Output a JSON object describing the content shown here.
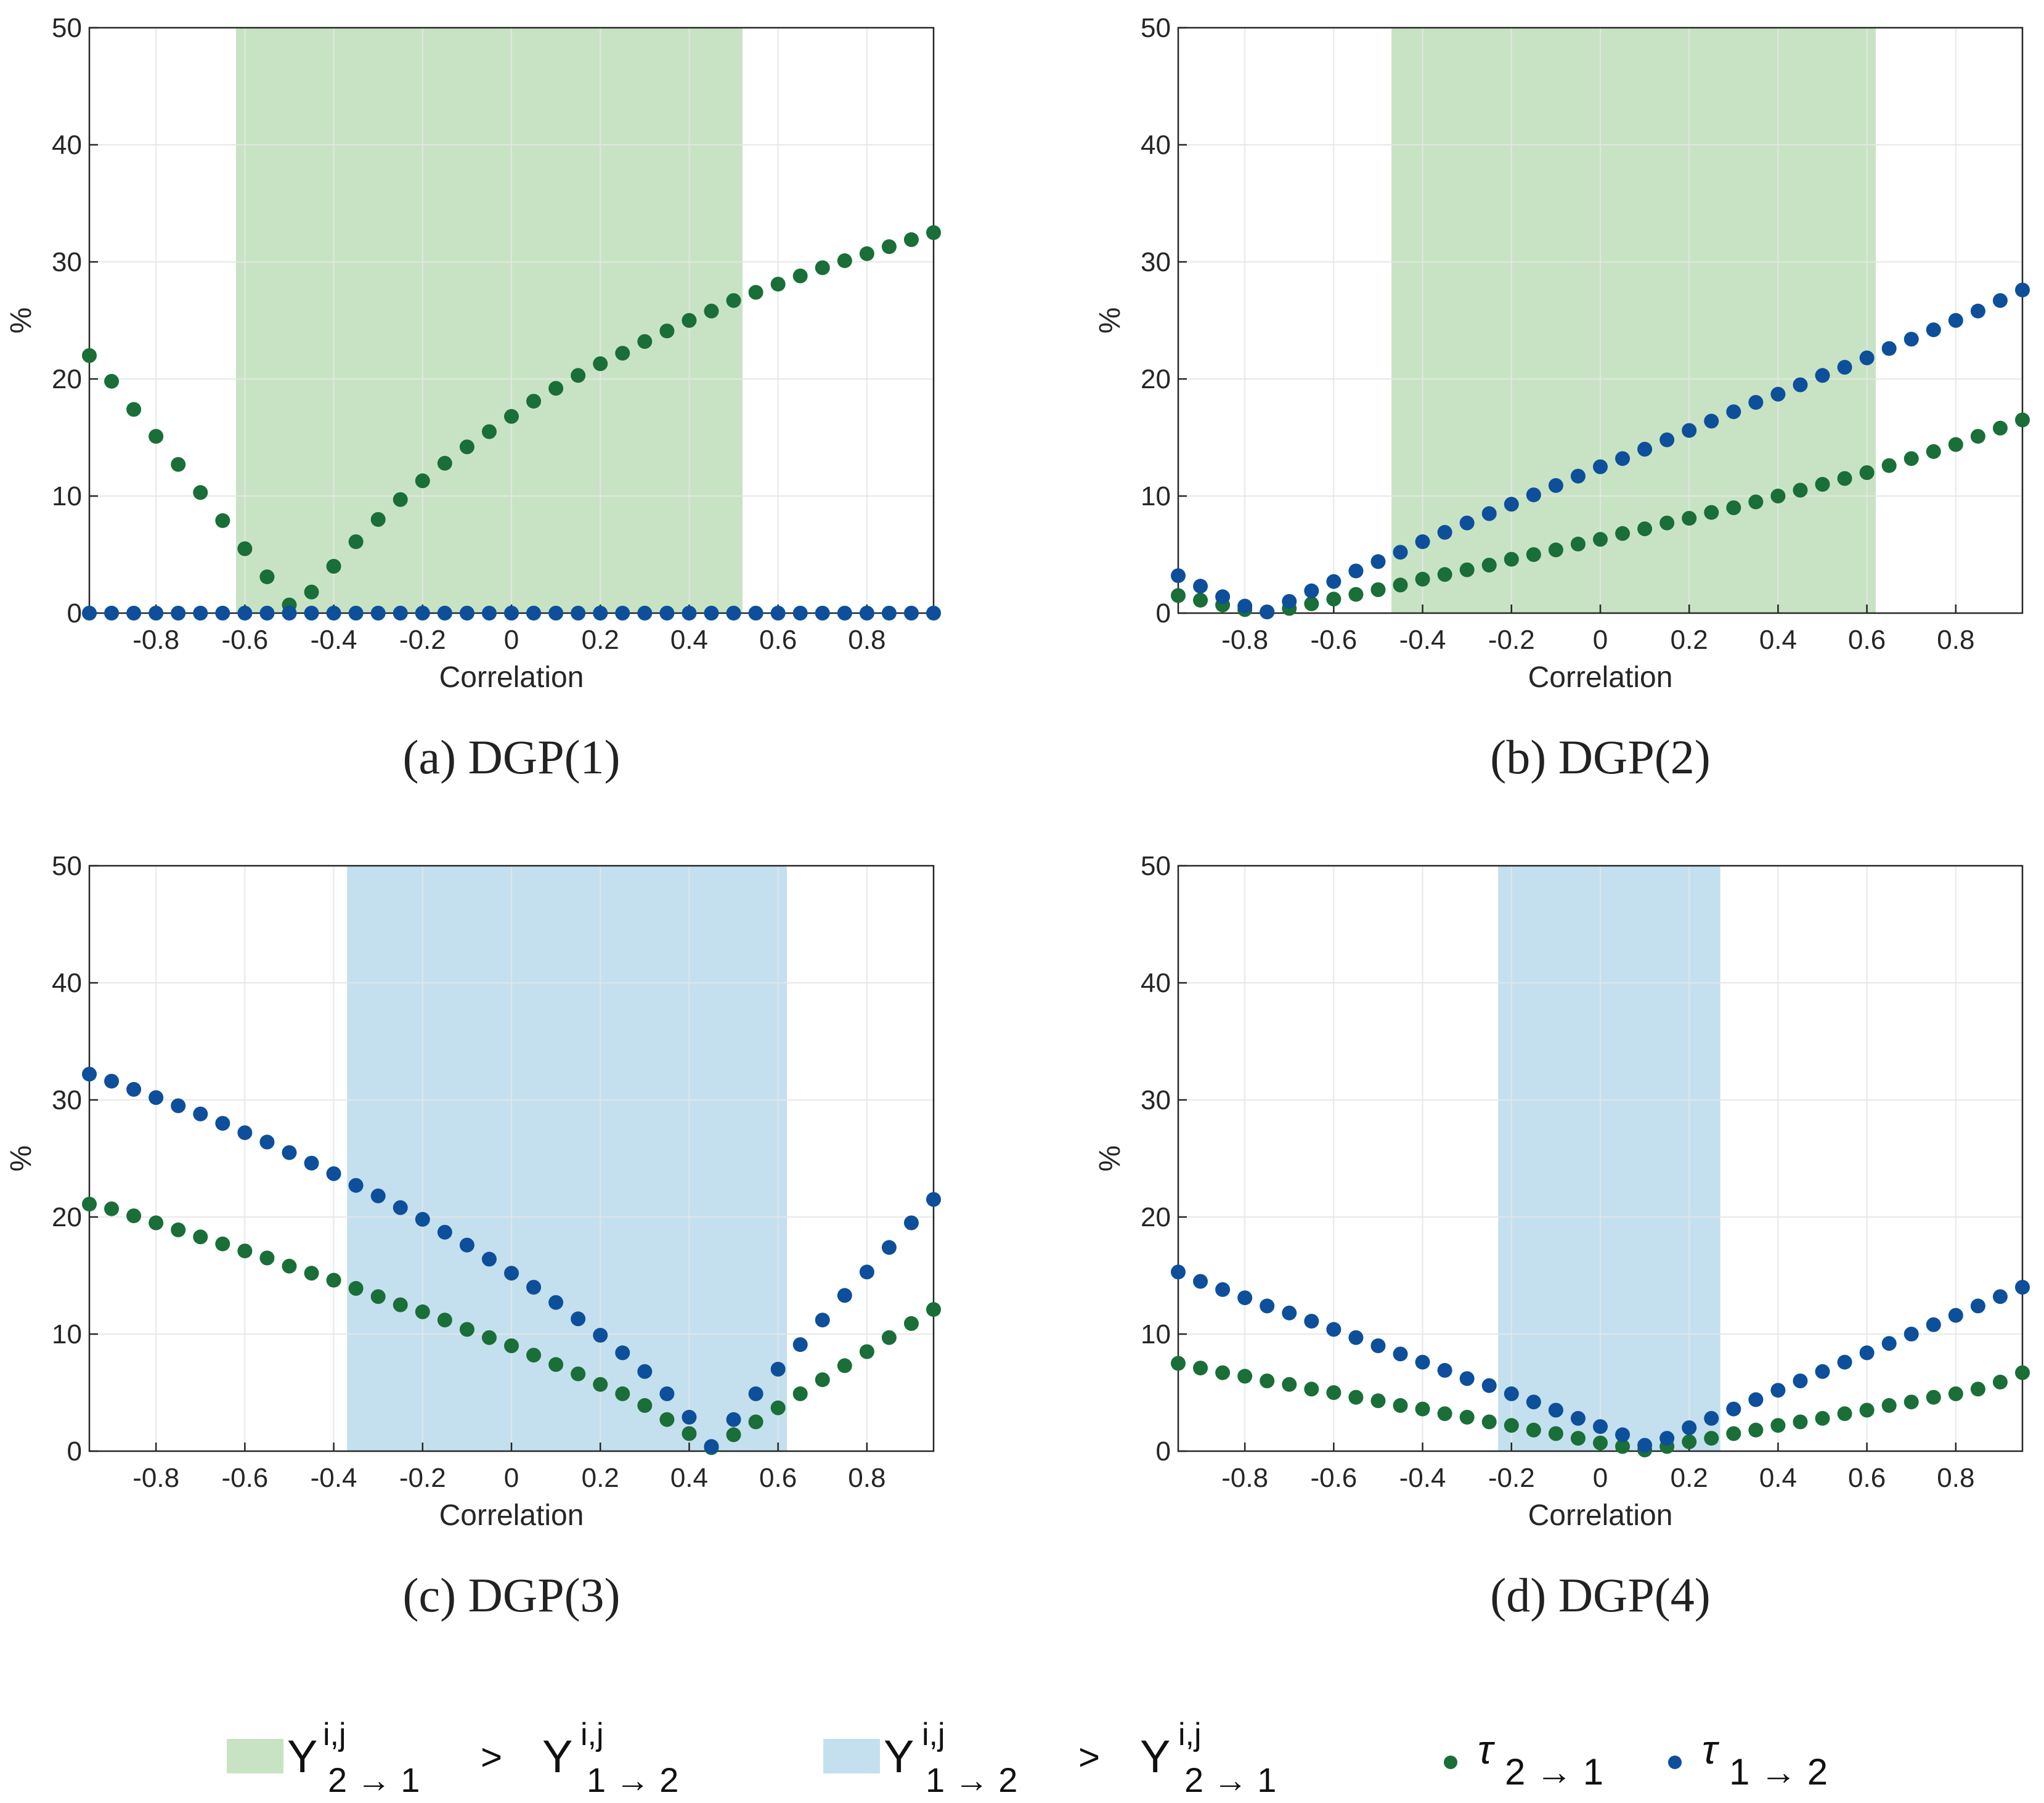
{
  "colors": {
    "green_dot": "#1a6e38",
    "blue_dot": "#0d4f9a",
    "green_band": "#c8e3c4",
    "blue_band": "#c4e0ee",
    "grid": "#e6e6e6",
    "axis": "#262626"
  },
  "chart_data": [
    {
      "type": "scatter",
      "caption": "(a) DGP(1)",
      "xlabel": "Correlation",
      "ylabel": "%",
      "xlim": [
        -0.95,
        0.95
      ],
      "ylim": [
        0,
        50
      ],
      "xticks": [
        -0.8,
        -0.6,
        -0.4,
        -0.2,
        0,
        0.2,
        0.4,
        0.6,
        0.8
      ],
      "xtick_labels": [
        "-0.8",
        "-0.6",
        "-0.4",
        "-0.2",
        "0",
        "0.2",
        "0.4",
        "0.6",
        "0.8"
      ],
      "yticks": [
        0,
        10,
        20,
        30,
        40,
        50
      ],
      "ytick_labels": [
        "0",
        "10",
        "20",
        "30",
        "40",
        "50"
      ],
      "grid": true,
      "band": {
        "from": -0.62,
        "to": 0.52,
        "kind": "green"
      },
      "x": [
        -0.95,
        -0.9,
        -0.85,
        -0.8,
        -0.75,
        -0.7,
        -0.65,
        -0.6,
        -0.55,
        -0.5,
        -0.45,
        -0.4,
        -0.35,
        -0.3,
        -0.25,
        -0.2,
        -0.15,
        -0.1,
        -0.05,
        0,
        0.05,
        0.1,
        0.15,
        0.2,
        0.25,
        0.3,
        0.35,
        0.4,
        0.45,
        0.5,
        0.55,
        0.6,
        0.65,
        0.7,
        0.75,
        0.8,
        0.85,
        0.9,
        0.95
      ],
      "series": [
        {
          "name": "tau_2_1",
          "color": "green",
          "values": [
            22.0,
            19.8,
            17.4,
            15.1,
            12.7,
            10.3,
            7.9,
            5.5,
            3.1,
            0.7,
            1.8,
            4.0,
            6.1,
            8.0,
            9.7,
            11.3,
            12.8,
            14.2,
            15.5,
            16.8,
            18.1,
            19.2,
            20.3,
            21.3,
            22.2,
            23.2,
            24.1,
            25.0,
            25.8,
            26.7,
            27.4,
            28.1,
            28.8,
            29.5,
            30.1,
            30.7,
            31.3,
            31.9,
            32.5
          ]
        },
        {
          "name": "tau_1_2",
          "color": "blue",
          "values": [
            0,
            0,
            0,
            0,
            0,
            0,
            0,
            0,
            0,
            0,
            0,
            0,
            0,
            0,
            0,
            0,
            0,
            0,
            0,
            0,
            0,
            0,
            0,
            0,
            0,
            0,
            0,
            0,
            0,
            0,
            0,
            0,
            0,
            0,
            0,
            0,
            0,
            0,
            0
          ]
        }
      ]
    },
    {
      "type": "scatter",
      "caption": "(b) DGP(2)",
      "xlabel": "Correlation",
      "ylabel": "%",
      "xlim": [
        -0.95,
        0.95
      ],
      "ylim": [
        0,
        50
      ],
      "xticks": [
        -0.8,
        -0.6,
        -0.4,
        -0.2,
        0,
        0.2,
        0.4,
        0.6,
        0.8
      ],
      "xtick_labels": [
        "-0.8",
        "-0.6",
        "-0.4",
        "-0.2",
        "0",
        "0.2",
        "0.4",
        "0.6",
        "0.8"
      ],
      "yticks": [
        0,
        10,
        20,
        30,
        40,
        50
      ],
      "ytick_labels": [
        "0",
        "10",
        "20",
        "30",
        "40",
        "50"
      ],
      "grid": true,
      "band": {
        "from": -0.47,
        "to": 0.62,
        "kind": "green"
      },
      "x": [
        -0.95,
        -0.9,
        -0.85,
        -0.8,
        -0.75,
        -0.7,
        -0.65,
        -0.6,
        -0.55,
        -0.5,
        -0.45,
        -0.4,
        -0.35,
        -0.3,
        -0.25,
        -0.2,
        -0.15,
        -0.1,
        -0.05,
        0,
        0.05,
        0.1,
        0.15,
        0.2,
        0.25,
        0.3,
        0.35,
        0.4,
        0.45,
        0.5,
        0.55,
        0.6,
        0.65,
        0.7,
        0.75,
        0.8,
        0.85,
        0.9,
        0.95
      ],
      "series": [
        {
          "name": "tau_2_1",
          "color": "green",
          "values": [
            1.5,
            1.1,
            0.7,
            0.3,
            0.1,
            0.4,
            0.8,
            1.2,
            1.6,
            2.0,
            2.4,
            2.9,
            3.3,
            3.7,
            4.1,
            4.6,
            5.0,
            5.4,
            5.9,
            6.3,
            6.8,
            7.2,
            7.7,
            8.1,
            8.6,
            9.0,
            9.5,
            10.0,
            10.5,
            11.0,
            11.5,
            12.0,
            12.6,
            13.2,
            13.8,
            14.4,
            15.1,
            15.8,
            16.5
          ]
        },
        {
          "name": "tau_1_2",
          "color": "blue",
          "values": [
            3.2,
            2.3,
            1.4,
            0.6,
            0.1,
            1.0,
            1.9,
            2.7,
            3.6,
            4.4,
            5.2,
            6.1,
            6.9,
            7.7,
            8.5,
            9.3,
            10.1,
            10.9,
            11.7,
            12.5,
            13.2,
            14.0,
            14.8,
            15.6,
            16.4,
            17.2,
            18.0,
            18.7,
            19.5,
            20.3,
            21.0,
            21.8,
            22.6,
            23.4,
            24.2,
            25.0,
            25.8,
            26.7,
            27.6
          ]
        }
      ]
    },
    {
      "type": "scatter",
      "caption": "(c) DGP(3)",
      "xlabel": "Correlation",
      "ylabel": "%",
      "xlim": [
        -0.95,
        0.95
      ],
      "ylim": [
        0,
        50
      ],
      "xticks": [
        -0.8,
        -0.6,
        -0.4,
        -0.2,
        0,
        0.2,
        0.4,
        0.6,
        0.8
      ],
      "xtick_labels": [
        "-0.8",
        "-0.6",
        "-0.4",
        "-0.2",
        "0",
        "0.2",
        "0.4",
        "0.6",
        "0.8"
      ],
      "yticks": [
        0,
        10,
        20,
        30,
        40,
        50
      ],
      "ytick_labels": [
        "0",
        "10",
        "20",
        "30",
        "40",
        "50"
      ],
      "grid": true,
      "band": {
        "from": -0.37,
        "to": 0.62,
        "kind": "blue"
      },
      "x": [
        -0.95,
        -0.9,
        -0.85,
        -0.8,
        -0.75,
        -0.7,
        -0.65,
        -0.6,
        -0.55,
        -0.5,
        -0.45,
        -0.4,
        -0.35,
        -0.3,
        -0.25,
        -0.2,
        -0.15,
        -0.1,
        -0.05,
        0,
        0.05,
        0.1,
        0.15,
        0.2,
        0.25,
        0.3,
        0.35,
        0.4,
        0.45,
        0.5,
        0.55,
        0.6,
        0.65,
        0.7,
        0.75,
        0.8,
        0.85,
        0.9,
        0.95
      ],
      "series": [
        {
          "name": "tau_2_1",
          "color": "green",
          "values": [
            21.1,
            20.7,
            20.1,
            19.5,
            18.9,
            18.3,
            17.7,
            17.1,
            16.5,
            15.8,
            15.2,
            14.6,
            13.9,
            13.2,
            12.5,
            11.9,
            11.2,
            10.4,
            9.7,
            9.0,
            8.2,
            7.4,
            6.6,
            5.7,
            4.9,
            3.9,
            2.7,
            1.5,
            0.3,
            1.4,
            2.5,
            3.7,
            4.9,
            6.1,
            7.3,
            8.5,
            9.7,
            10.9,
            12.1
          ]
        },
        {
          "name": "tau_1_2",
          "color": "blue",
          "values": [
            32.2,
            31.6,
            30.9,
            30.2,
            29.5,
            28.8,
            28.0,
            27.2,
            26.4,
            25.5,
            24.6,
            23.7,
            22.7,
            21.8,
            20.8,
            19.8,
            18.7,
            17.6,
            16.4,
            15.2,
            14.0,
            12.7,
            11.3,
            9.9,
            8.4,
            6.8,
            4.9,
            2.9,
            0.4,
            2.7,
            4.9,
            7.0,
            9.1,
            11.2,
            13.3,
            15.3,
            17.4,
            19.5,
            21.5
          ]
        }
      ]
    },
    {
      "type": "scatter",
      "caption": "(d) DGP(4)",
      "xlabel": "Correlation",
      "ylabel": "%",
      "xlim": [
        -0.95,
        0.95
      ],
      "ylim": [
        0,
        50
      ],
      "xticks": [
        -0.8,
        -0.6,
        -0.4,
        -0.2,
        0,
        0.2,
        0.4,
        0.6,
        0.8
      ],
      "xtick_labels": [
        "-0.8",
        "-0.6",
        "-0.4",
        "-0.2",
        "0",
        "0.2",
        "0.4",
        "0.6",
        "0.8"
      ],
      "yticks": [
        0,
        10,
        20,
        30,
        40,
        50
      ],
      "ytick_labels": [
        "0",
        "10",
        "20",
        "30",
        "40",
        "50"
      ],
      "grid": true,
      "band": {
        "from": -0.23,
        "to": 0.27,
        "kind": "blue"
      },
      "x": [
        -0.95,
        -0.9,
        -0.85,
        -0.8,
        -0.75,
        -0.7,
        -0.65,
        -0.6,
        -0.55,
        -0.5,
        -0.45,
        -0.4,
        -0.35,
        -0.3,
        -0.25,
        -0.2,
        -0.15,
        -0.1,
        -0.05,
        0,
        0.05,
        0.1,
        0.15,
        0.2,
        0.25,
        0.3,
        0.35,
        0.4,
        0.45,
        0.5,
        0.55,
        0.6,
        0.65,
        0.7,
        0.75,
        0.8,
        0.85,
        0.9,
        0.95
      ],
      "series": [
        {
          "name": "tau_2_1",
          "color": "green",
          "values": [
            7.5,
            7.1,
            6.7,
            6.4,
            6.0,
            5.7,
            5.3,
            5.0,
            4.6,
            4.3,
            3.9,
            3.6,
            3.2,
            2.9,
            2.5,
            2.2,
            1.8,
            1.5,
            1.1,
            0.7,
            0.4,
            0.1,
            0.4,
            0.8,
            1.1,
            1.5,
            1.8,
            2.2,
            2.5,
            2.8,
            3.2,
            3.5,
            3.9,
            4.2,
            4.6,
            4.9,
            5.3,
            5.9,
            6.7
          ]
        },
        {
          "name": "tau_1_2",
          "color": "blue",
          "values": [
            15.3,
            14.5,
            13.8,
            13.1,
            12.4,
            11.8,
            11.1,
            10.4,
            9.7,
            9.0,
            8.3,
            7.6,
            6.9,
            6.2,
            5.6,
            4.9,
            4.2,
            3.5,
            2.8,
            2.1,
            1.4,
            0.5,
            1.1,
            2.0,
            2.8,
            3.6,
            4.4,
            5.2,
            6.0,
            6.8,
            7.6,
            8.4,
            9.2,
            10.0,
            10.8,
            11.6,
            12.4,
            13.2,
            14.0
          ]
        }
      ]
    }
  ],
  "legend": {
    "items": [
      {
        "name": "green-band",
        "symbol": "Υ",
        "lhs_sub": "2 → 1",
        "op": ">",
        "rhs_sub": "1 → 2",
        "sup": "i,j"
      },
      {
        "name": "blue-band",
        "symbol": "Υ",
        "lhs_sub": "1 → 2",
        "op": ">",
        "rhs_sub": "2 → 1",
        "sup": "i,j"
      },
      {
        "name": "tau-2-1",
        "symbol": "τ",
        "sub": "2 → 1"
      },
      {
        "name": "tau-1-2",
        "symbol": "τ",
        "sub": "1 → 2"
      }
    ]
  }
}
